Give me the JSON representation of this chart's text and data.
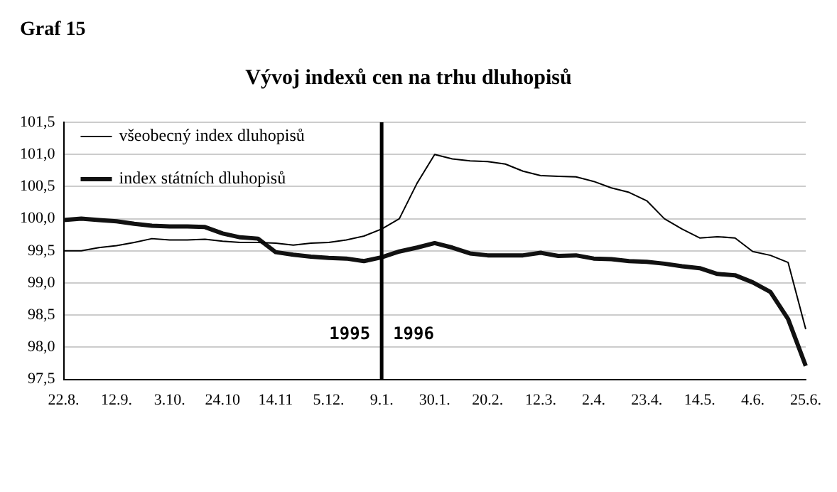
{
  "chart_data": {
    "type": "line",
    "title": "Vývoj indexů cen na trhu dluhopisů",
    "annotations": [
      "Graf 15",
      "1995",
      "1996"
    ],
    "categories": [
      "22.8.",
      null,
      null,
      "12.9.",
      null,
      null,
      "3.10.",
      null,
      null,
      "24.10",
      null,
      null,
      "14.11",
      null,
      null,
      "5.12.",
      null,
      null,
      "9.1.",
      null,
      null,
      "30.1.",
      null,
      null,
      "20.2.",
      null,
      null,
      "12.3.",
      null,
      null,
      "2.4.",
      null,
      null,
      "23.4.",
      null,
      null,
      "14.5.",
      null,
      null,
      "4.6.",
      null,
      null,
      "25.6."
    ],
    "series": [
      {
        "name": "všeobecný index dluhopisů",
        "color": "#000000",
        "values": [
          99.5,
          99.5,
          99.55,
          99.58,
          99.63,
          99.69,
          99.67,
          99.67,
          99.68,
          99.65,
          99.63,
          99.63,
          99.62,
          99.59,
          99.62,
          99.63,
          99.67,
          99.73,
          99.84,
          100.0,
          100.55,
          101.0,
          100.93,
          100.9,
          100.89,
          100.85,
          100.74,
          100.67,
          100.66,
          100.65,
          100.58,
          100.48,
          100.41,
          100.28,
          100.0,
          99.84,
          99.7,
          99.72,
          99.7,
          99.49,
          99.43,
          99.32,
          98.28
        ]
      },
      {
        "name": "index státních dluhopisů",
        "color": "#111111",
        "values": [
          99.98,
          100.0,
          99.98,
          99.96,
          99.92,
          99.89,
          99.88,
          99.88,
          99.87,
          99.77,
          99.71,
          99.69,
          99.48,
          99.44,
          99.41,
          99.39,
          99.38,
          99.34,
          99.4,
          99.49,
          99.55,
          99.62,
          99.55,
          99.46,
          99.43,
          99.43,
          99.43,
          99.47,
          99.42,
          99.43,
          99.38,
          99.37,
          99.34,
          99.33,
          99.3,
          99.26,
          99.23,
          99.14,
          99.12,
          99.01,
          98.86,
          98.44,
          97.71
        ]
      }
    ],
    "ylim": [
      97.5,
      101.5
    ],
    "yticks": [
      {
        "value": 97.5,
        "label": "97,5"
      },
      {
        "value": 98,
        "label": "98,0"
      },
      {
        "value": 98.5,
        "label": "98,5"
      },
      {
        "value": 99,
        "label": "99,0"
      },
      {
        "value": 99.5,
        "label": "99,5"
      },
      {
        "value": 100,
        "label": "100,0"
      },
      {
        "value": 100.5,
        "label": "100,5"
      },
      {
        "value": 101,
        "label": "101,0"
      },
      {
        "value": 101.5,
        "label": "101,5"
      }
    ],
    "ref_lines": [
      {
        "axis": "x",
        "value": "9.1.",
        "color": "#000000"
      }
    ],
    "grid": "y",
    "legend": "top left",
    "marker": "none",
    "line_style": "solid"
  }
}
